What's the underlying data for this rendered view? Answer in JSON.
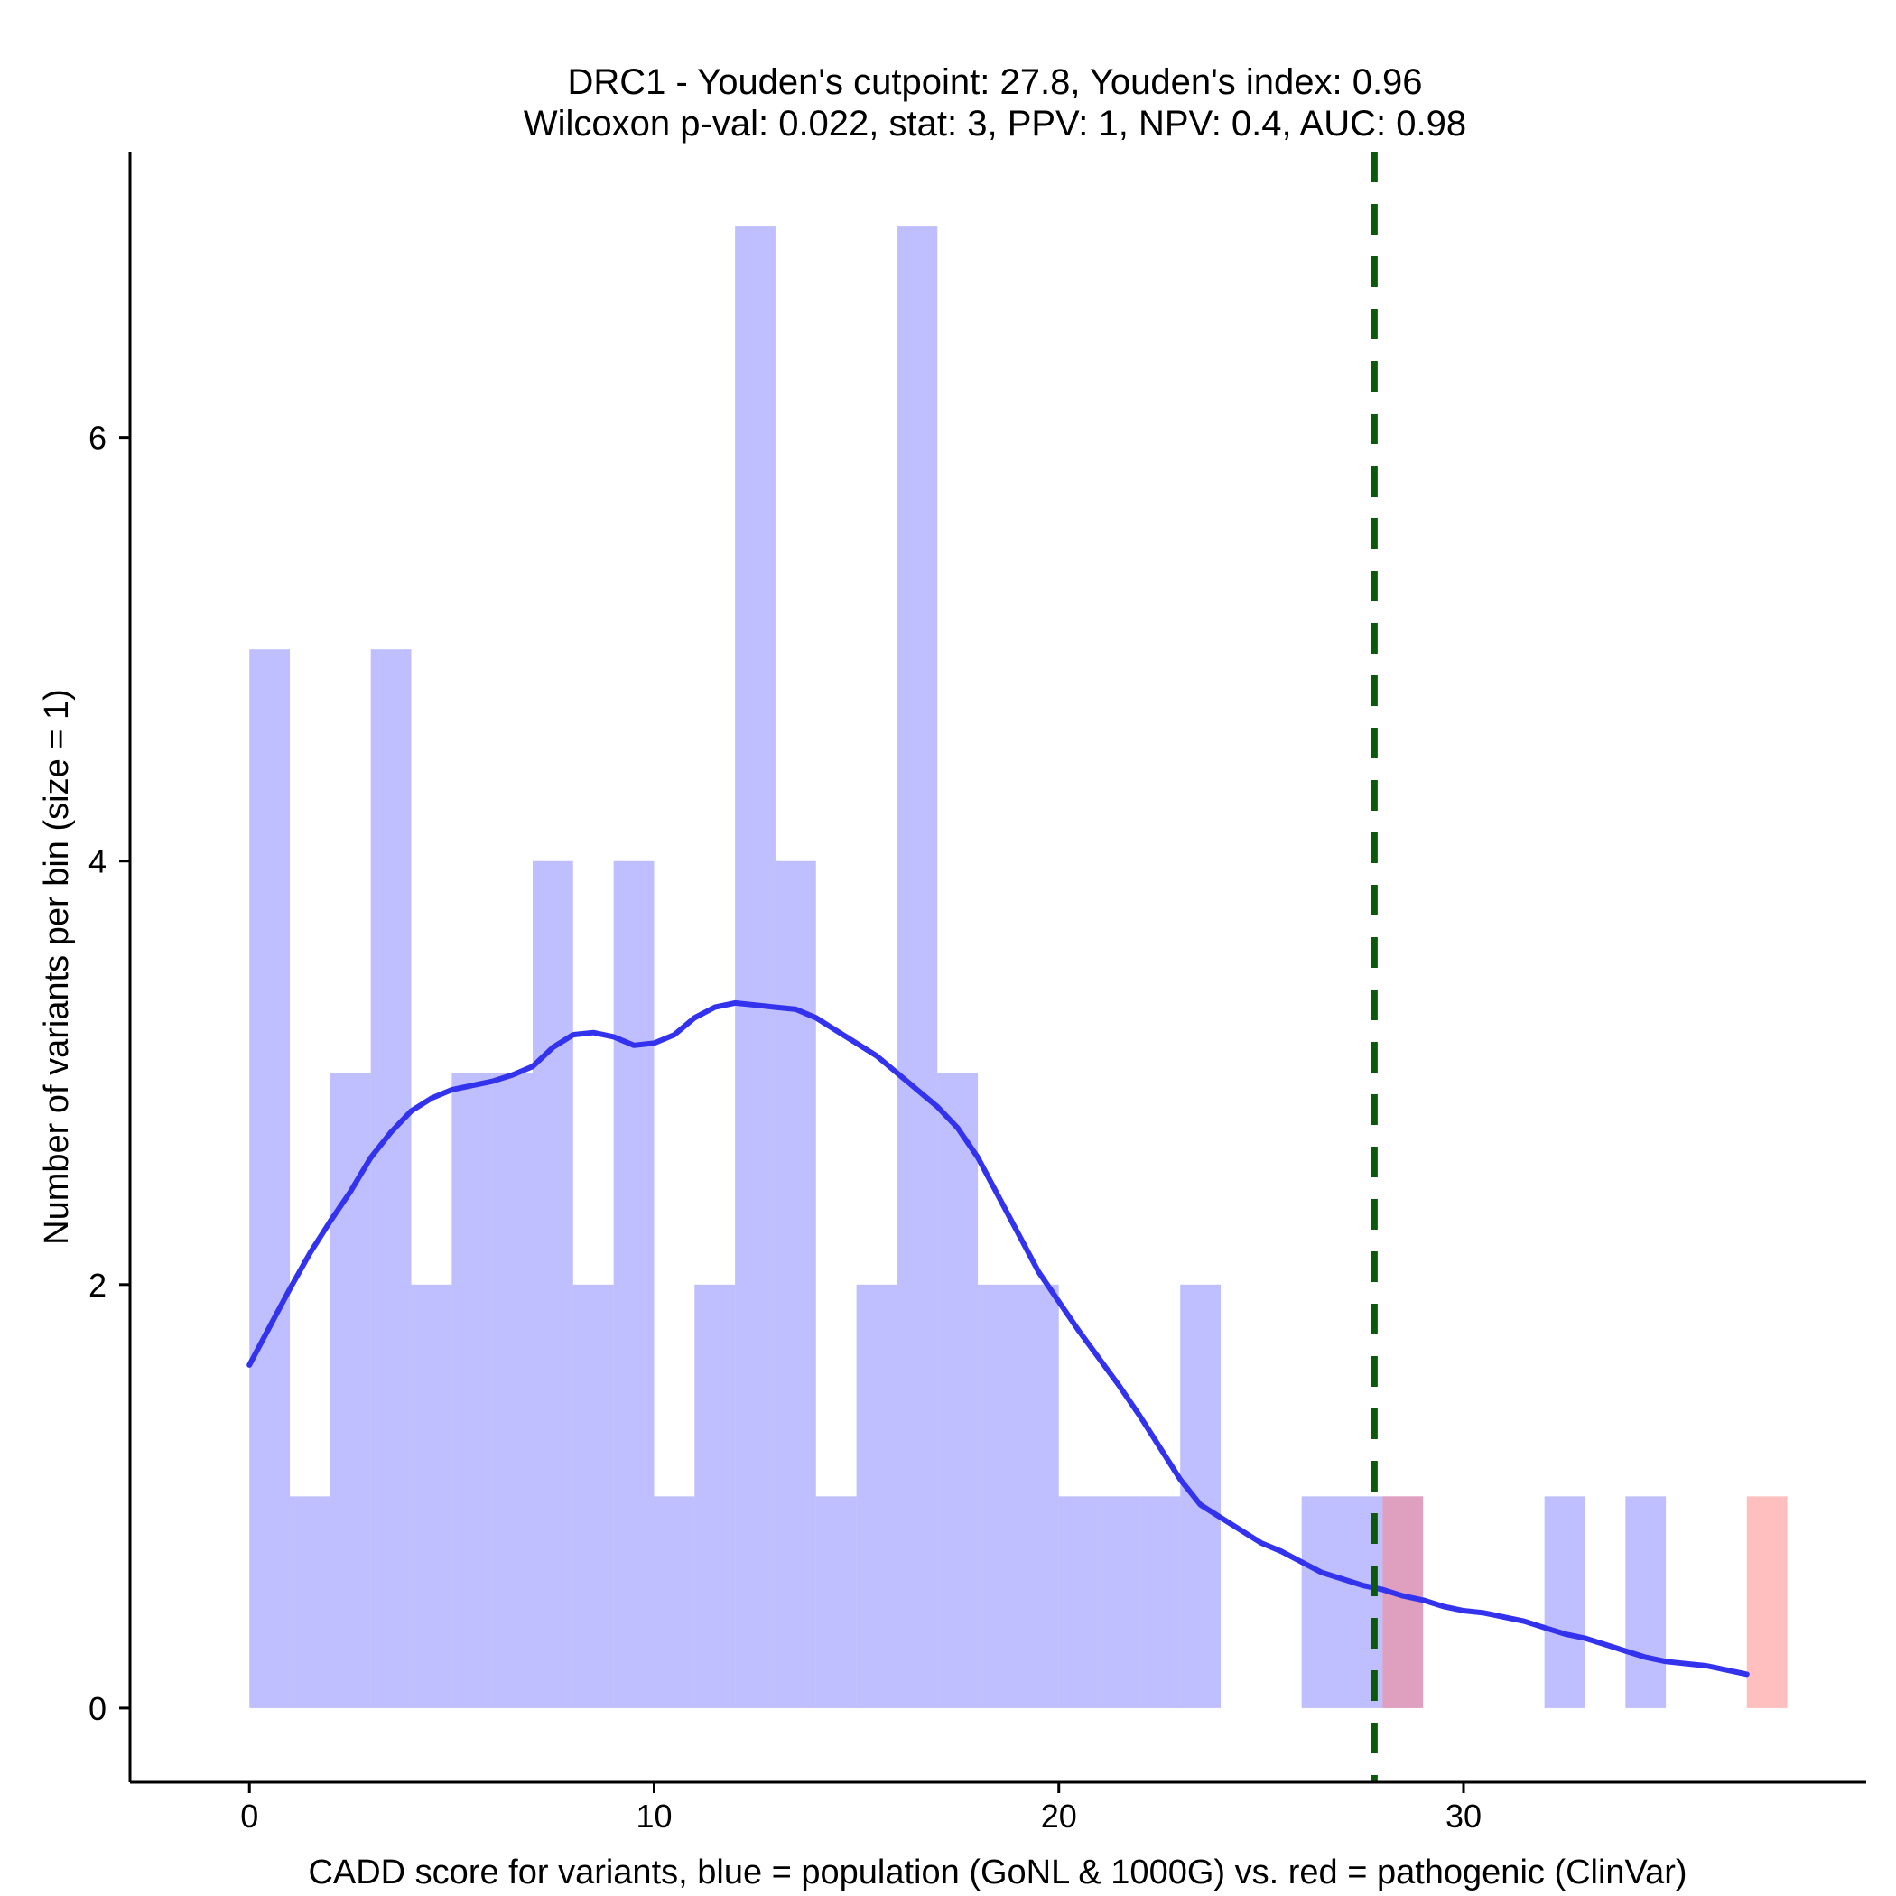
{
  "chart_data": {
    "type": "bar",
    "title": "DRC1 - Youden's cutpoint: 27.8, Youden's index: 0.96",
    "subtitle": "Wilcoxon p-val: 0.022, stat: 3, PPV: 1, NPV: 0.4, AUC: 0.98",
    "xlabel": "CADD score for variants, blue = population (GoNL & 1000G) vs. red = pathogenic (ClinVar)",
    "ylabel": "Number of variants per bin (size = 1)",
    "xlim": [
      -2.95,
      39.95
    ],
    "ylim": [
      -0.35,
      7.35
    ],
    "x_ticks": [
      0,
      10,
      20,
      30
    ],
    "y_ticks": [
      0,
      2,
      4,
      6
    ],
    "bin_width": 1,
    "series": [
      {
        "name": "population (GoNL & 1000G)",
        "color": "#8080ff",
        "opacity": 0.5,
        "bins": [
          {
            "start": 0,
            "count": 5
          },
          {
            "start": 1,
            "count": 1
          },
          {
            "start": 2,
            "count": 3
          },
          {
            "start": 3,
            "count": 5
          },
          {
            "start": 4,
            "count": 2
          },
          {
            "start": 5,
            "count": 3
          },
          {
            "start": 6,
            "count": 3
          },
          {
            "start": 7,
            "count": 4
          },
          {
            "start": 8,
            "count": 2
          },
          {
            "start": 9,
            "count": 4
          },
          {
            "start": 10,
            "count": 1
          },
          {
            "start": 11,
            "count": 2
          },
          {
            "start": 12,
            "count": 7
          },
          {
            "start": 13,
            "count": 4
          },
          {
            "start": 14,
            "count": 1
          },
          {
            "start": 15,
            "count": 2
          },
          {
            "start": 16,
            "count": 7
          },
          {
            "start": 17,
            "count": 3
          },
          {
            "start": 18,
            "count": 2
          },
          {
            "start": 19,
            "count": 2
          },
          {
            "start": 20,
            "count": 1
          },
          {
            "start": 21,
            "count": 1
          },
          {
            "start": 22,
            "count": 1
          },
          {
            "start": 23,
            "count": 2
          },
          {
            "start": 26,
            "count": 1
          },
          {
            "start": 27,
            "count": 1
          },
          {
            "start": 28,
            "count": 1
          },
          {
            "start": 32,
            "count": 1
          },
          {
            "start": 34,
            "count": 1
          }
        ]
      },
      {
        "name": "pathogenic (ClinVar)",
        "color": "#ff8080",
        "opacity": 0.5,
        "bins": [
          {
            "start": 28,
            "count": 1
          },
          {
            "start": 37,
            "count": 1
          }
        ]
      }
    ],
    "density_line": {
      "color": "#3333ee",
      "x": [
        0,
        0.5,
        1,
        1.5,
        2,
        2.5,
        3,
        3.5,
        4,
        4.5,
        5,
        5.5,
        6,
        6.5,
        7,
        7.5,
        8,
        8.5,
        9,
        9.5,
        10,
        10.5,
        11,
        11.5,
        12,
        12.5,
        13,
        13.5,
        14,
        14.5,
        15,
        15.5,
        16,
        16.5,
        17,
        17.5,
        18,
        18.5,
        19,
        19.5,
        20,
        20.5,
        21,
        21.5,
        22,
        22.5,
        23,
        23.5,
        24,
        24.5,
        25,
        25.5,
        26,
        26.5,
        27,
        27.5,
        28,
        28.5,
        29,
        29.5,
        30,
        30.5,
        31,
        31.5,
        32,
        32.5,
        33,
        33.5,
        34,
        34.5,
        35,
        35.5,
        36,
        36.5,
        37
      ],
      "y": [
        1.62,
        1.8,
        1.98,
        2.15,
        2.3,
        2.44,
        2.6,
        2.72,
        2.82,
        2.88,
        2.92,
        2.94,
        2.96,
        2.99,
        3.03,
        3.12,
        3.18,
        3.19,
        3.17,
        3.13,
        3.14,
        3.18,
        3.26,
        3.31,
        3.33,
        3.32,
        3.31,
        3.3,
        3.26,
        3.2,
        3.14,
        3.08,
        3.0,
        2.92,
        2.84,
        2.74,
        2.6,
        2.42,
        2.24,
        2.06,
        1.92,
        1.78,
        1.65,
        1.52,
        1.38,
        1.23,
        1.08,
        0.96,
        0.9,
        0.84,
        0.78,
        0.74,
        0.69,
        0.64,
        0.61,
        0.58,
        0.56,
        0.53,
        0.51,
        0.48,
        0.46,
        0.45,
        0.43,
        0.41,
        0.38,
        0.35,
        0.33,
        0.3,
        0.27,
        0.24,
        0.22,
        0.21,
        0.2,
        0.18,
        0.16
      ]
    },
    "cutpoint_line": {
      "x": 27.8,
      "color": "#0b5a0b",
      "style": "dashed"
    }
  }
}
